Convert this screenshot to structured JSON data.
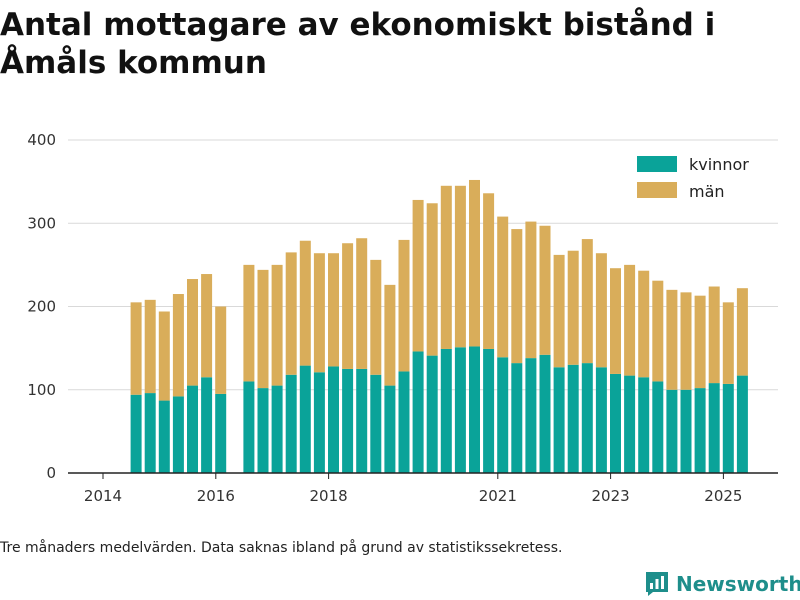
{
  "title": "Antal mottagare av ekonomiskt bistånd i Åmåls kommun",
  "footnote": "Tre månaders medelvärden. Data saknas ibland på grund av statistikssekretess.",
  "brand": "Newsworthy",
  "colors": {
    "kvinnor": "#0aa399",
    "man": "#d9ad5a",
    "grid": "#d9d9d9",
    "axis": "#222222",
    "brand": "#1e8e8b"
  },
  "chart_data": {
    "type": "bar",
    "stacked": true,
    "title": "Antal mottagare av ekonomiskt bistånd i Åmåls kommun",
    "ylim": [
      0,
      400
    ],
    "yticks": [
      0,
      100,
      200,
      300,
      400
    ],
    "xticks": [
      "2014",
      "2016",
      "2018",
      "2021",
      "2023",
      "2025"
    ],
    "legend_position": "top-right",
    "grid": true,
    "categories": [
      "2014Q2",
      "2014Q3",
      "2014Q4",
      "2015Q1",
      "2015Q2",
      "2015Q3",
      "2015Q4",
      "2016Q1",
      "2016Q2",
      "2016Q3",
      "2016Q4",
      "2017Q1",
      "2017Q2",
      "2017Q3",
      "2017Q4",
      "2018Q1",
      "2018Q2",
      "2018Q3",
      "2018Q4",
      "2019Q1",
      "2019Q2",
      "2019Q3",
      "2019Q4",
      "2020Q1",
      "2020Q2",
      "2020Q3",
      "2020Q4",
      "2021Q1",
      "2021Q2",
      "2021Q3",
      "2021Q4",
      "2022Q1",
      "2022Q2",
      "2022Q3",
      "2022Q4",
      "2023Q1",
      "2023Q2",
      "2023Q3",
      "2023Q4",
      "2024Q1",
      "2024Q2",
      "2024Q3",
      "2024Q4",
      "2025Q1"
    ],
    "series": [
      {
        "name": "kvinnor",
        "values": [
          94,
          96,
          87,
          92,
          105,
          115,
          95,
          null,
          110,
          102,
          105,
          118,
          129,
          121,
          128,
          125,
          125,
          118,
          105,
          122,
          146,
          141,
          149,
          151,
          152,
          149,
          139,
          132,
          138,
          142,
          127,
          130,
          132,
          127,
          119,
          117,
          115,
          110,
          100,
          100,
          102,
          108,
          107,
          117
        ]
      },
      {
        "name": "män",
        "values": [
          111,
          112,
          107,
          123,
          128,
          124,
          105,
          null,
          140,
          142,
          145,
          147,
          150,
          143,
          136,
          151,
          157,
          138,
          121,
          158,
          182,
          183,
          196,
          194,
          200,
          187,
          169,
          161,
          164,
          155,
          135,
          137,
          149,
          137,
          127,
          133,
          128,
          121,
          120,
          117,
          111,
          116,
          98,
          105
        ]
      }
    ]
  }
}
